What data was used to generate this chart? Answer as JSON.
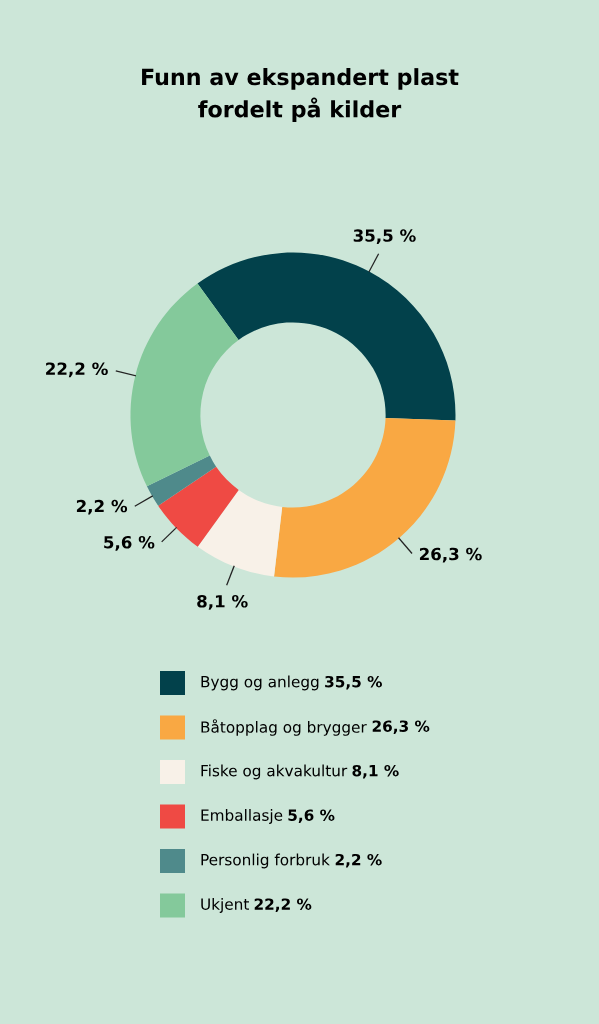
{
  "chart_data": {
    "type": "donut",
    "title": "Funn av ekspandert plast\nfordelt på kilder",
    "categories": [
      "Bygg og anlegg",
      "Båtopplag og brygger",
      "Fiske og akvakultur",
      "Emballasje",
      "Personlig forbruk",
      "Ukjent"
    ],
    "values": [
      35.5,
      26.3,
      8.1,
      5.6,
      2.2,
      22.2
    ],
    "value_labels": [
      "35,5 %",
      "26,3 %",
      "8,1 %",
      "5,6 %",
      "2,2 %",
      "22,2 %"
    ],
    "colors": [
      "#02414b",
      "#f9a843",
      "#f8f1e8",
      "#ef4a44",
      "#4f8a8b",
      "#84c99b"
    ],
    "legend": "bottom"
  }
}
